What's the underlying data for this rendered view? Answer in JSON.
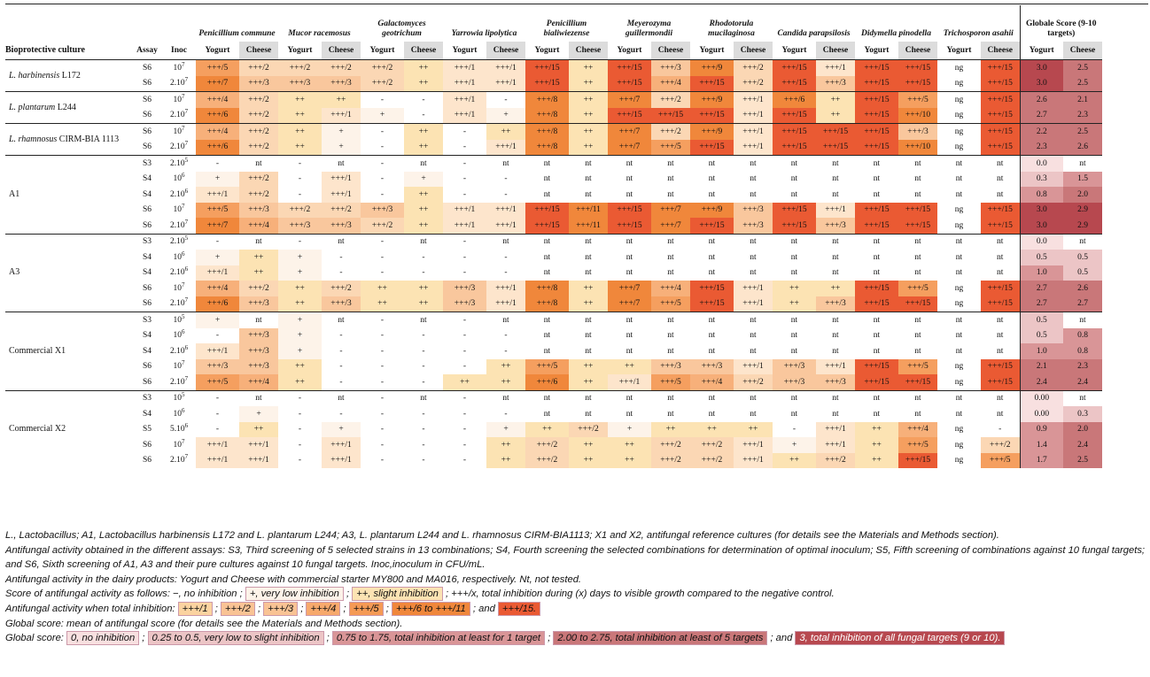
{
  "header": {
    "targets": [
      "Penicillium commune",
      "Mucor racemosus",
      "Galactomyces geotrichum",
      "Yarrowia lipolytica",
      "Penicillium bialiwiezense",
      "Meyerozyma guillermondii",
      "Rhodotorula mucilaginosa",
      "Candida parapsilosis",
      "Didymella pinodella",
      "Trichosporon asahii"
    ],
    "global_score": "Globale Score (9-10 targets)",
    "col_culture": "Bioprotective culture",
    "col_assay": "Assay",
    "col_inoc": "Inoc",
    "yogurt": "Yogurt",
    "cheese": "Cheese"
  },
  "groups": [
    {
      "label_italic": "L. harbinensis",
      "label_rest": " L172",
      "rows": [
        {
          "assay": "S6",
          "inoc_base": "10",
          "inoc_exp": "7",
          "cells": [
            "+++/5",
            "+++/2",
            "+++/2",
            "+++/2",
            "+++/2",
            "++",
            "+++/1",
            "+++/1",
            "+++/15",
            "++",
            "+++/15",
            "+++/3",
            "+++/9",
            "+++/2",
            "+++/15",
            "+++/1",
            "+++/15",
            "+++/15",
            "ng",
            "+++/15"
          ],
          "global": [
            "3.0",
            "2.5"
          ]
        },
        {
          "assay": "S6",
          "inoc_base": "2.10",
          "inoc_exp": "7",
          "cells": [
            "+++/7",
            "+++/3",
            "+++/3",
            "+++/3",
            "+++/2",
            "++",
            "+++/1",
            "+++/1",
            "+++/15",
            "++",
            "+++/15",
            "+++/4",
            "+++/15",
            "+++/2",
            "+++/15",
            "+++/3",
            "+++/15",
            "+++/15",
            "ng",
            "+++/15"
          ],
          "global": [
            "3.0",
            "2.5"
          ]
        }
      ]
    },
    {
      "label_italic": "L. plantarum",
      "label_rest": " L244",
      "rows": [
        {
          "assay": "S6",
          "inoc_base": "10",
          "inoc_exp": "7",
          "cells": [
            "+++/4",
            "+++/2",
            "++",
            "++",
            "-",
            "-",
            "+++/1",
            "-",
            "+++/8",
            "++",
            "+++/7",
            "+++/2",
            "+++/9",
            "+++/1",
            "+++/6",
            "++",
            "+++/15",
            "+++/5",
            "ng",
            "+++/15"
          ],
          "global": [
            "2.6",
            "2.1"
          ]
        },
        {
          "assay": "S6",
          "inoc_base": "2.10",
          "inoc_exp": "7",
          "cells": [
            "+++/6",
            "+++/2",
            "++",
            "+++/1",
            "+",
            "-",
            "+++/1",
            "+",
            "+++/8",
            "++",
            "+++/15",
            "+++/15",
            "+++/15",
            "+++/1",
            "+++/15",
            "++",
            "+++/15",
            "+++/10",
            "ng",
            "+++/15"
          ],
          "global": [
            "2.7",
            "2.3"
          ]
        }
      ]
    },
    {
      "label_italic": "L. rhamnosus",
      "label_rest": " CIRM-BIA 1113",
      "rows": [
        {
          "assay": "S6",
          "inoc_base": "10",
          "inoc_exp": "7",
          "cells": [
            "+++/4",
            "+++/2",
            "++",
            "+",
            "-",
            "++",
            "-",
            "++",
            "+++/8",
            "++",
            "+++/7",
            "+++/2",
            "+++/9",
            "+++/1",
            "+++/15",
            "+++/15",
            "+++/15",
            "+++/3",
            "ng",
            "+++/15"
          ],
          "global": [
            "2.2",
            "2.5"
          ]
        },
        {
          "assay": "S6",
          "inoc_base": "2.10",
          "inoc_exp": "7",
          "cells": [
            "+++/6",
            "+++/2",
            "++",
            "+",
            "-",
            "++",
            "-",
            "+++/1",
            "+++/8",
            "++",
            "+++/7",
            "+++/5",
            "+++/15",
            "+++/1",
            "+++/15",
            "+++/15",
            "+++/15",
            "+++/10",
            "ng",
            "+++/15"
          ],
          "global": [
            "2.3",
            "2.6"
          ]
        }
      ]
    },
    {
      "label_italic": "",
      "label_rest": "A1",
      "rows": [
        {
          "assay": "S3",
          "inoc_base": "2.10",
          "inoc_exp": "5",
          "cells": [
            "-",
            "nt",
            "-",
            "nt",
            "-",
            "nt",
            "-",
            "nt",
            "nt",
            "nt",
            "nt",
            "nt",
            "nt",
            "nt",
            "nt",
            "nt",
            "nt",
            "nt",
            "nt",
            "nt"
          ],
          "global": [
            "0.0",
            "nt"
          ]
        },
        {
          "assay": "S4",
          "inoc_base": "10",
          "inoc_exp": "6",
          "cells": [
            "+",
            "+++/2",
            "-",
            "+++/1",
            "-",
            "+",
            "-",
            "-",
            "nt",
            "nt",
            "nt",
            "nt",
            "nt",
            "nt",
            "nt",
            "nt",
            "nt",
            "nt",
            "nt",
            "nt"
          ],
          "global": [
            "0.3",
            "1.5"
          ]
        },
        {
          "assay": "S4",
          "inoc_base": "2.10",
          "inoc_exp": "6",
          "cells": [
            "+++/1",
            "+++/2",
            "-",
            "+++/1",
            "-",
            "++",
            "-",
            "-",
            "nt",
            "nt",
            "nt",
            "nt",
            "nt",
            "nt",
            "nt",
            "nt",
            "nt",
            "nt",
            "nt",
            "nt"
          ],
          "global": [
            "0.8",
            "2.0"
          ]
        },
        {
          "assay": "S6",
          "inoc_base": "10",
          "inoc_exp": "7",
          "cells": [
            "+++/5",
            "+++/3",
            "+++/2",
            "+++/2",
            "+++/3",
            "++",
            "+++/1",
            "+++/1",
            "+++/15",
            "+++/11",
            "+++/15",
            "+++/7",
            "+++/9",
            "+++/3",
            "+++/15",
            "+++/1",
            "+++/15",
            "+++/15",
            "ng",
            "+++/15"
          ],
          "global": [
            "3.0",
            "2.9"
          ]
        },
        {
          "assay": "S6",
          "inoc_base": "2.10",
          "inoc_exp": "7",
          "cells": [
            "+++/7",
            "+++/4",
            "+++/3",
            "+++/3",
            "+++/2",
            "++",
            "+++/1",
            "+++/1",
            "+++/15",
            "+++/11",
            "+++/15",
            "+++/7",
            "+++/15",
            "+++/3",
            "+++/15",
            "+++/3",
            "+++/15",
            "+++/15",
            "ng",
            "+++/15"
          ],
          "global": [
            "3.0",
            "2.9"
          ]
        }
      ]
    },
    {
      "label_italic": "",
      "label_rest": "A3",
      "rows": [
        {
          "assay": "S3",
          "inoc_base": "2.10",
          "inoc_exp": "5",
          "cells": [
            "-",
            "nt",
            "-",
            "nt",
            "-",
            "nt",
            "-",
            "nt",
            "nt",
            "nt",
            "nt",
            "nt",
            "nt",
            "nt",
            "nt",
            "nt",
            "nt",
            "nt",
            "nt",
            "nt"
          ],
          "global": [
            "0.0",
            "nt"
          ]
        },
        {
          "assay": "S4",
          "inoc_base": "10",
          "inoc_exp": "6",
          "cells": [
            "+",
            "++",
            "+",
            "-",
            "-",
            "-",
            "-",
            "-",
            "nt",
            "nt",
            "nt",
            "nt",
            "nt",
            "nt",
            "nt",
            "nt",
            "nt",
            "nt",
            "nt",
            "nt"
          ],
          "global": [
            "0.5",
            "0.5"
          ]
        },
        {
          "assay": "S4",
          "inoc_base": "2.10",
          "inoc_exp": "6",
          "cells": [
            "+++/1",
            "++",
            "+",
            "-",
            "-",
            "-",
            "-",
            "-",
            "nt",
            "nt",
            "nt",
            "nt",
            "nt",
            "nt",
            "nt",
            "nt",
            "nt",
            "nt",
            "nt",
            "nt"
          ],
          "global": [
            "1.0",
            "0.5"
          ]
        },
        {
          "assay": "S6",
          "inoc_base": "10",
          "inoc_exp": "7",
          "cells": [
            "+++/4",
            "+++/2",
            "++",
            "+++/2",
            "++",
            "++",
            "+++/3",
            "+++/1",
            "+++/8",
            "++",
            "+++/7",
            "+++/4",
            "+++/15",
            "+++/1",
            "++",
            "++",
            "+++/15",
            "+++/5",
            "ng",
            "+++/15"
          ],
          "global": [
            "2.7",
            "2.6"
          ]
        },
        {
          "assay": "S6",
          "inoc_base": "2.10",
          "inoc_exp": "7",
          "cells": [
            "+++/6",
            "+++/3",
            "++",
            "+++/3",
            "++",
            "++",
            "+++/3",
            "+++/1",
            "+++/8",
            "++",
            "+++/7",
            "+++/5",
            "+++/15",
            "+++/1",
            "++",
            "+++/3",
            "+++/15",
            "+++/15",
            "ng",
            "+++/15"
          ],
          "global": [
            "2.7",
            "2.7"
          ]
        }
      ]
    },
    {
      "label_italic": "",
      "label_rest": "Commercial X1",
      "rows": [
        {
          "assay": "S3",
          "inoc_base": "10",
          "inoc_exp": "5",
          "cells": [
            "+",
            "nt",
            "+",
            "nt",
            "-",
            "nt",
            "-",
            "nt",
            "nt",
            "nt",
            "nt",
            "nt",
            "nt",
            "nt",
            "nt",
            "nt",
            "nt",
            "nt",
            "nt",
            "nt"
          ],
          "global": [
            "0.5",
            "nt"
          ]
        },
        {
          "assay": "S4",
          "inoc_base": "10",
          "inoc_exp": "6",
          "cells": [
            "-",
            "+++/3",
            "+",
            "-",
            "-",
            "-",
            "-",
            "-",
            "nt",
            "nt",
            "nt",
            "nt",
            "nt",
            "nt",
            "nt",
            "nt",
            "nt",
            "nt",
            "nt",
            "nt"
          ],
          "global": [
            "0.5",
            "0.8"
          ]
        },
        {
          "assay": "S4",
          "inoc_base": "2.10",
          "inoc_exp": "6",
          "cells": [
            "+++/1",
            "+++/3",
            "+",
            "-",
            "-",
            "-",
            "-",
            "-",
            "nt",
            "nt",
            "nt",
            "nt",
            "nt",
            "nt",
            "nt",
            "nt",
            "nt",
            "nt",
            "nt",
            "nt"
          ],
          "global": [
            "1.0",
            "0.8"
          ]
        },
        {
          "assay": "S6",
          "inoc_base": "10",
          "inoc_exp": "7",
          "cells": [
            "+++/3",
            "+++/3",
            "++",
            "-",
            "-",
            "-",
            "-",
            "++",
            "+++/5",
            "++",
            "++",
            "+++/3",
            "+++/3",
            "+++/1",
            "+++/3",
            "+++/1",
            "+++/15",
            "+++/5",
            "ng",
            "+++/15"
          ],
          "global": [
            "2.1",
            "2.3"
          ]
        },
        {
          "assay": "S6",
          "inoc_base": "2.10",
          "inoc_exp": "7",
          "cells": [
            "+++/5",
            "+++/4",
            "++",
            "-",
            "-",
            "-",
            "++",
            "++",
            "+++/6",
            "++",
            "+++/1",
            "+++/5",
            "+++/4",
            "+++/2",
            "+++/3",
            "+++/3",
            "+++/15",
            "+++/15",
            "ng",
            "+++/15"
          ],
          "global": [
            "2.4",
            "2.4"
          ]
        }
      ]
    },
    {
      "label_italic": "",
      "label_rest": "Commercial X2",
      "rows": [
        {
          "assay": "S3",
          "inoc_base": "10",
          "inoc_exp": "5",
          "cells": [
            "-",
            "nt",
            "-",
            "nt",
            "-",
            "nt",
            "-",
            "nt",
            "nt",
            "nt",
            "nt",
            "nt",
            "nt",
            "nt",
            "nt",
            "nt",
            "nt",
            "nt",
            "nt",
            "nt"
          ],
          "global": [
            "0.00",
            "nt"
          ]
        },
        {
          "assay": "S4",
          "inoc_base": "10",
          "inoc_exp": "6",
          "cells": [
            "-",
            "+",
            "-",
            "-",
            "-",
            "-",
            "-",
            "-",
            "nt",
            "nt",
            "nt",
            "nt",
            "nt",
            "nt",
            "nt",
            "nt",
            "nt",
            "nt",
            "nt",
            "nt"
          ],
          "global": [
            "0.00",
            "0.3"
          ]
        },
        {
          "assay": "S5",
          "inoc_base": "5.10",
          "inoc_exp": "6",
          "cells": [
            "-",
            "++",
            "-",
            "+",
            "-",
            "-",
            "-",
            "+",
            "++",
            "+++/2",
            "+",
            "++",
            "++",
            "++",
            "-",
            "+++/1",
            "++",
            "+++/4",
            "ng",
            "-"
          ],
          "global": [
            "0.9",
            "2.0"
          ]
        },
        {
          "assay": "S6",
          "inoc_base": "10",
          "inoc_exp": "7",
          "cells": [
            "+++/1",
            "+++/1",
            "-",
            "+++/1",
            "-",
            "-",
            "-",
            "++",
            "+++/2",
            "++",
            "++",
            "+++/2",
            "+++/2",
            "+++/1",
            "+",
            "+++/1",
            "++",
            "+++/5",
            "ng",
            "+++/2"
          ],
          "global": [
            "1.4",
            "2.4"
          ]
        },
        {
          "assay": "S6",
          "inoc_base": "2.10",
          "inoc_exp": "7",
          "cells": [
            "+++/1",
            "+++/1",
            "-",
            "+++/1",
            "-",
            "-",
            "-",
            "++",
            "+++/2",
            "++",
            "++",
            "+++/2",
            "+++/2",
            "+++/1",
            "++",
            "+++/2",
            "++",
            "+++/15",
            "ng",
            "+++/5"
          ],
          "global": [
            "1.7",
            "2.5"
          ]
        }
      ]
    }
  ],
  "notes": {
    "line1": "L., Lactobacillus; A1, Lactobacillus harbinensis L172 and L. plantarum L244; A3, L. plantarum L244 and L. rhamnosus CIRM-BIA1113; X1 and X2, antifungal reference cultures (for details see the Materials and Methods section).",
    "line2": "Antifungal activity obtained in the different assays: S3, Third screening of 5 selected strains in 13 combinations; S4, Fourth screening the selected combinations for determination of optimal inoculum; S5, Fifth screening of combinations against 10 fungal targets; and S6, Sixth screening of A1, A3 and their pure cultures against 10 fungal targets. Inoc,inoculum in CFU/mL.",
    "line3": "Antifungal activity in the dairy products: Yogurt and Cheese with commercial starter MY800 and MA016, respectively. Nt, not tested.",
    "score_prefix": "Score of antifungal activity as follows:",
    "score_items": [
      "−, no inhibition",
      "+, very low inhibition",
      "++, slight inhibition"
    ],
    "score_suffix": "+++/x, total inhibition during (x) days to visible growth compared to the negative control.",
    "total_prefix": "Antifungal activity when total inhibition:",
    "total_items": [
      "+++/1",
      "+++/2",
      "+++/3",
      "+++/4",
      "+++/5",
      "+++/6 to +++/11"
    ],
    "total_and": "and",
    "total_last": "+++/15.",
    "global_line": "Global score: mean of antifungal score (for details see the Materials and Methods section).",
    "global_prefix": "Global score:",
    "global_items": [
      "0, no inhibition",
      "0.25 to 0.5, very low to slight inhibition",
      "0.75 to 1.75, total inhibition at least for 1 target",
      "2.00 to 2.75, total inhibition at least of 5 targets"
    ],
    "global_and": "and",
    "global_last": "3, total inhibition of all fungal targets (9 or 10)."
  }
}
